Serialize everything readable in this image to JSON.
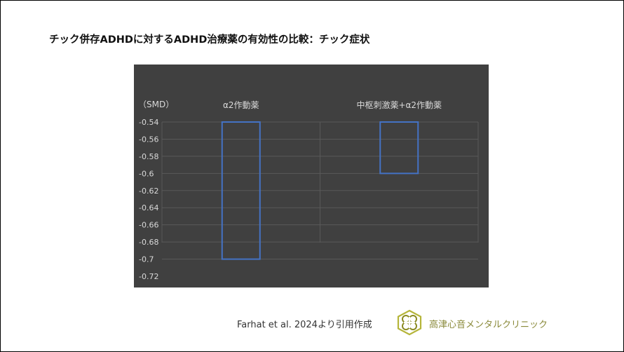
{
  "title": "チック併存ADHDに対するADHD治療薬の有効性の比較：チック症状",
  "chart_data": {
    "type": "bar",
    "ylabel": "（SMD）",
    "categories": [
      "α2作動薬",
      "中枢刺激薬+α2作動薬"
    ],
    "series": [
      {
        "values": [
          -0.7,
          -0.6
        ]
      }
    ],
    "bar_top": -0.54,
    "ylim": [
      -0.72,
      -0.54
    ],
    "yticks": [
      -0.54,
      -0.56,
      -0.58,
      -0.6,
      -0.62,
      -0.64,
      -0.66,
      -0.68,
      -0.7,
      -0.72
    ],
    "ytick_labels": [
      "-0.54",
      "-0.56",
      "-0.58",
      "-0.6",
      "-0.62",
      "-0.64",
      "-0.66",
      "-0.68",
      "-0.7",
      "-0.72"
    ],
    "grid": true,
    "colors": {
      "background": "#404040",
      "bar_outline": "#4472C4",
      "grid": "#595959",
      "text": "#d9d9d9"
    }
  },
  "citation": "Farhat et al. 2024より引用作成",
  "clinic": {
    "name": "高津心音メンタルクリニック",
    "logo_icon": "hexagon-knot-logo"
  }
}
